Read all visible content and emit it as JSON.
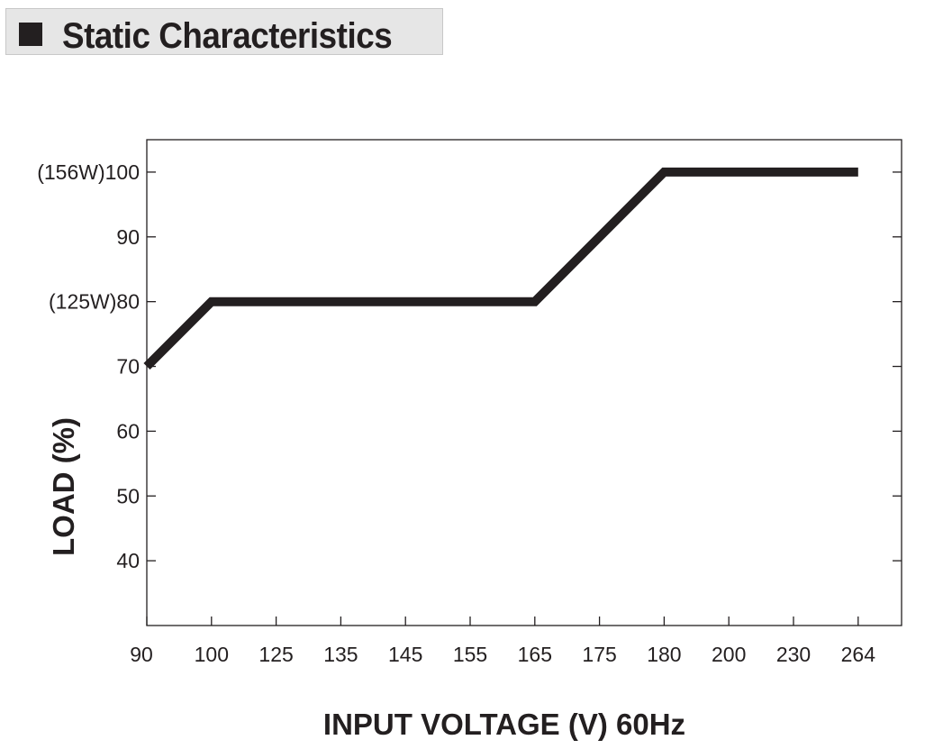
{
  "header": {
    "title": "Static Characteristics"
  },
  "chart_data": {
    "type": "line",
    "title": "",
    "xlabel": "INPUT VOLTAGE (V) 60Hz",
    "ylabel": "LOAD (%)",
    "x_tick_labels": [
      "90",
      "100",
      "125",
      "135",
      "145",
      "155",
      "165",
      "175",
      "180",
      "200",
      "230",
      "264"
    ],
    "y_ticks": [
      {
        "value": 100,
        "label": "(156W)100"
      },
      {
        "value": 90,
        "label": "90"
      },
      {
        "value": 80,
        "label": "(125W)80"
      },
      {
        "value": 70,
        "label": "70"
      },
      {
        "value": 60,
        "label": "60"
      },
      {
        "value": 50,
        "label": "50"
      },
      {
        "value": 40,
        "label": "40"
      }
    ],
    "ylim": [
      30,
      105
    ],
    "grid": false,
    "series": [
      {
        "points": [
          {
            "x": "90",
            "y": 70
          },
          {
            "x": "100",
            "y": 80
          },
          {
            "x": "165",
            "y": 80
          },
          {
            "x": "180",
            "y": 100
          },
          {
            "x": "264",
            "y": 100
          }
        ]
      }
    ],
    "colors": {
      "line": "#231f20",
      "axis": "#231f20"
    }
  }
}
